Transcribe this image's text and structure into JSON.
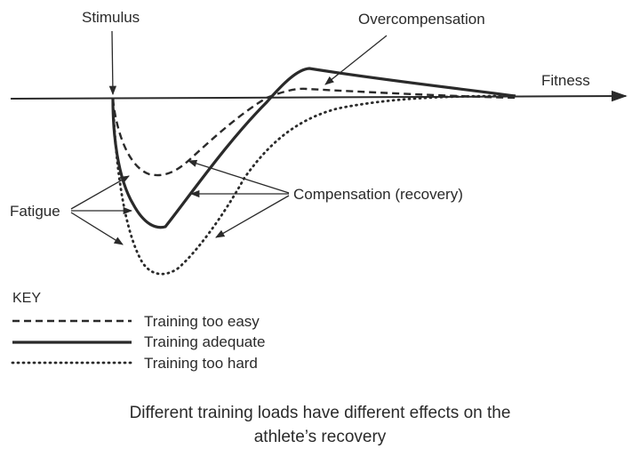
{
  "labels": {
    "stimulus": "Stimulus",
    "overcompensation": "Overcompensation",
    "fitness": "Fitness",
    "fatigue": "Fatigue",
    "compensation": "Compensation (recovery)"
  },
  "key": {
    "title": "KEY",
    "items": [
      {
        "label": "Training too easy",
        "style": "dashed"
      },
      {
        "label": "Training adequate",
        "style": "solid"
      },
      {
        "label": "Training too hard",
        "style": "dotted"
      }
    ]
  },
  "caption": {
    "line1": "Different training loads have different effects on the",
    "line2": "athlete’s recovery"
  },
  "colors": {
    "ink": "#2a2a2a",
    "background": "#ffffff"
  }
}
